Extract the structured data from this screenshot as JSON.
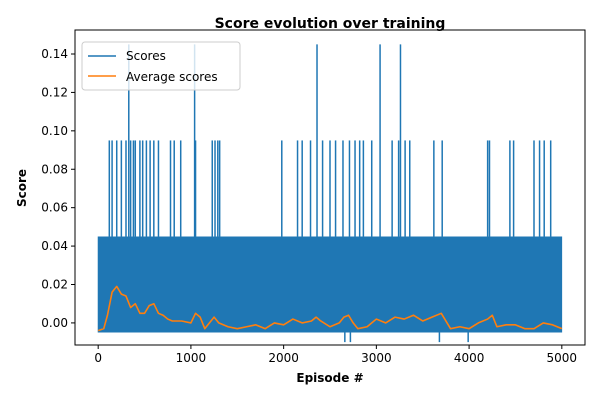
{
  "chart_data": {
    "type": "line",
    "title": "Score evolution over training",
    "xlabel": "Episode #",
    "ylabel": "Score",
    "xlim": [
      -250,
      5250
    ],
    "ylim": [
      -0.0115,
      0.1525
    ],
    "xticks": [
      0,
      1000,
      2000,
      3000,
      4000,
      5000
    ],
    "xtick_labels": [
      "0",
      "1000",
      "2000",
      "3000",
      "4000",
      "5000"
    ],
    "yticks": [
      0.0,
      0.02,
      0.04,
      0.06,
      0.08,
      0.1,
      0.12,
      0.14
    ],
    "ytick_labels": [
      "0.00",
      "0.02",
      "0.04",
      "0.06",
      "0.08",
      "0.10",
      "0.12",
      "0.14"
    ],
    "grid": false,
    "legend_position": "top-left",
    "series": [
      {
        "name": "Scores",
        "color": "#1f77b4",
        "x_range": [
          0,
          5000
        ],
        "base_values": [
          -0.005,
          0.045
        ],
        "peaks": [
          {
            "x": 120,
            "y": 0.095
          },
          {
            "x": 150,
            "y": 0.095
          },
          {
            "x": 200,
            "y": 0.095
          },
          {
            "x": 250,
            "y": 0.095
          },
          {
            "x": 300,
            "y": 0.095
          },
          {
            "x": 330,
            "y": 0.145
          },
          {
            "x": 350,
            "y": 0.095
          },
          {
            "x": 380,
            "y": 0.095
          },
          {
            "x": 400,
            "y": 0.095
          },
          {
            "x": 450,
            "y": 0.095
          },
          {
            "x": 480,
            "y": 0.095
          },
          {
            "x": 520,
            "y": 0.095
          },
          {
            "x": 560,
            "y": 0.095
          },
          {
            "x": 600,
            "y": 0.095
          },
          {
            "x": 650,
            "y": 0.095
          },
          {
            "x": 780,
            "y": 0.095
          },
          {
            "x": 820,
            "y": 0.095
          },
          {
            "x": 890,
            "y": 0.095
          },
          {
            "x": 1040,
            "y": 0.145
          },
          {
            "x": 1050,
            "y": 0.095
          },
          {
            "x": 1230,
            "y": 0.095
          },
          {
            "x": 1260,
            "y": 0.095
          },
          {
            "x": 1290,
            "y": 0.095
          },
          {
            "x": 1310,
            "y": 0.095
          },
          {
            "x": 1980,
            "y": 0.095
          },
          {
            "x": 2150,
            "y": 0.095
          },
          {
            "x": 2200,
            "y": 0.095
          },
          {
            "x": 2290,
            "y": 0.095
          },
          {
            "x": 2360,
            "y": 0.145
          },
          {
            "x": 2420,
            "y": 0.095
          },
          {
            "x": 2500,
            "y": 0.095
          },
          {
            "x": 2560,
            "y": 0.095
          },
          {
            "x": 2640,
            "y": 0.095
          },
          {
            "x": 2710,
            "y": 0.095
          },
          {
            "x": 2770,
            "y": 0.095
          },
          {
            "x": 2820,
            "y": 0.095
          },
          {
            "x": 2860,
            "y": 0.095
          },
          {
            "x": 2950,
            "y": 0.095
          },
          {
            "x": 3040,
            "y": 0.145
          },
          {
            "x": 3170,
            "y": 0.095
          },
          {
            "x": 3240,
            "y": 0.095
          },
          {
            "x": 3260,
            "y": 0.145
          },
          {
            "x": 3310,
            "y": 0.095
          },
          {
            "x": 3360,
            "y": 0.095
          },
          {
            "x": 3620,
            "y": 0.095
          },
          {
            "x": 3710,
            "y": 0.095
          },
          {
            "x": 4200,
            "y": 0.095
          },
          {
            "x": 4220,
            "y": 0.095
          },
          {
            "x": 4440,
            "y": 0.095
          },
          {
            "x": 4480,
            "y": 0.095
          },
          {
            "x": 4700,
            "y": 0.095
          },
          {
            "x": 4760,
            "y": 0.095
          },
          {
            "x": 4810,
            "y": 0.095
          },
          {
            "x": 4880,
            "y": 0.095
          }
        ],
        "dips": [
          {
            "x": 2660,
            "y": -0.01
          },
          {
            "x": 2720,
            "y": -0.01
          },
          {
            "x": 3680,
            "y": -0.01
          },
          {
            "x": 3990,
            "y": -0.01
          }
        ]
      },
      {
        "name": "Average scores",
        "color": "#ff7f0e",
        "x": [
          0,
          60,
          100,
          150,
          200,
          250,
          300,
          350,
          400,
          450,
          500,
          550,
          600,
          650,
          700,
          750,
          800,
          900,
          1000,
          1050,
          1100,
          1150,
          1200,
          1250,
          1300,
          1400,
          1500,
          1600,
          1700,
          1800,
          1900,
          2000,
          2100,
          2200,
          2300,
          2350,
          2400,
          2500,
          2600,
          2650,
          2700,
          2750,
          2800,
          2900,
          3000,
          3100,
          3200,
          3300,
          3400,
          3500,
          3600,
          3700,
          3800,
          3900,
          4000,
          4100,
          4200,
          4250,
          4300,
          4400,
          4500,
          4600,
          4700,
          4800,
          4900,
          5000
        ],
        "values": [
          -0.004,
          -0.003,
          0.004,
          0.016,
          0.019,
          0.015,
          0.014,
          0.008,
          0.01,
          0.005,
          0.005,
          0.009,
          0.01,
          0.005,
          0.004,
          0.002,
          0.001,
          0.001,
          0.0,
          0.005,
          0.003,
          -0.003,
          0.0,
          0.003,
          0.0,
          -0.002,
          -0.003,
          -0.002,
          -0.001,
          -0.003,
          0.0,
          -0.001,
          0.002,
          0.0,
          0.001,
          0.003,
          0.001,
          -0.002,
          0.0,
          0.003,
          0.004,
          0.0,
          -0.003,
          -0.002,
          0.002,
          0.0,
          0.003,
          0.002,
          0.004,
          0.001,
          0.003,
          0.005,
          -0.003,
          -0.002,
          -0.003,
          0.0,
          0.002,
          0.004,
          -0.002,
          -0.001,
          -0.001,
          -0.003,
          -0.003,
          0.0,
          -0.001,
          -0.003
        ]
      }
    ]
  }
}
